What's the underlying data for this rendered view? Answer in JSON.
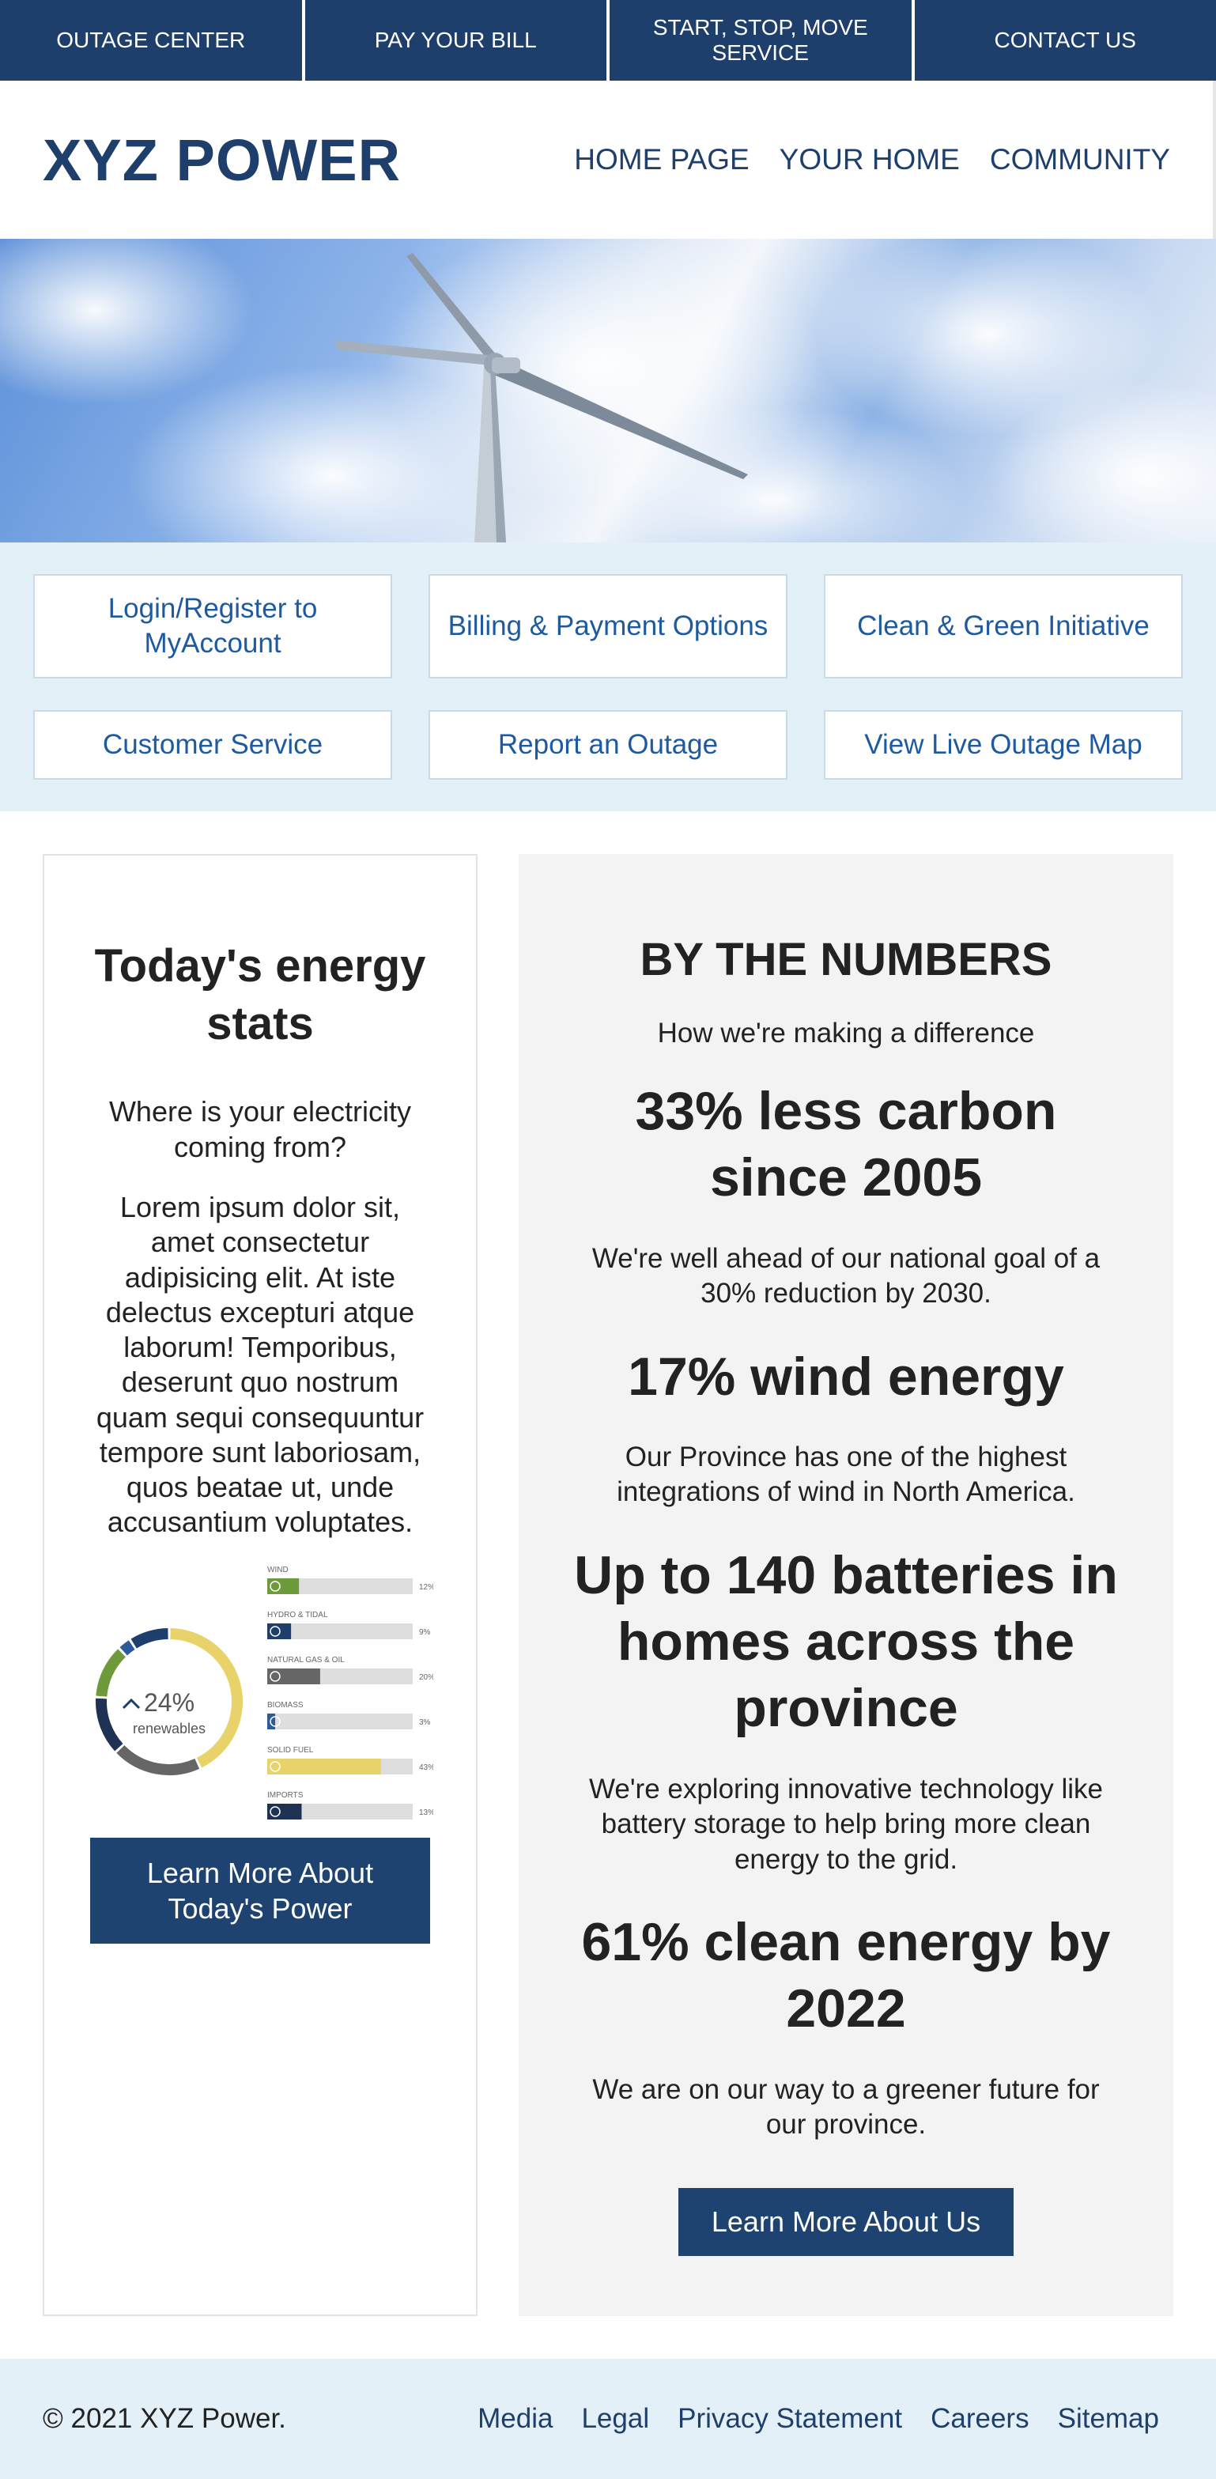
{
  "top_links": [
    "OUTAGE CENTER",
    "PAY YOUR BILL",
    "START, STOP, MOVE SERVICE",
    "CONTACT US"
  ],
  "logo": "XYZ POWER",
  "main_nav": [
    "HOME PAGE",
    "YOUR HOME",
    "COMMUNITY"
  ],
  "quick_links": [
    "Login/Register to MyAccount",
    "Billing & Payment Options",
    "Clean & Green Initiative",
    "Customer Service",
    "Report an Outage",
    "View Live Outage Map"
  ],
  "stats": {
    "title": "Today's energy stats",
    "subtitle": "Where is your electricity coming from?",
    "body": "Lorem ipsum dolor sit, amet consectetur adipisicing elit. At iste delectus excepturi atque laborum! Temporibus, deserunt quo nostrum quam sequi consequuntur tempore sunt laboriosam, quos beatae ut, unde accusantium voluptates.",
    "button": "Learn More About Today's Power",
    "donut_value": "24%",
    "donut_label": "renewables",
    "sources": [
      {
        "label": "WIND",
        "pct": "12%",
        "value": 12,
        "color": "#6e9a3c",
        "icon": "wind-turbine-icon"
      },
      {
        "label": "HYDRO & TIDAL",
        "pct": "9%",
        "value": 9,
        "color": "#1e3f6b",
        "icon": "water-icon"
      },
      {
        "label": "NATURAL GAS & OIL",
        "pct": "20%",
        "value": 20,
        "color": "#666666",
        "icon": "flame-icon"
      },
      {
        "label": "BIOMASS",
        "pct": "3%",
        "value": 3,
        "color": "#2c5a9a",
        "icon": "leaf-icon"
      },
      {
        "label": "SOLID FUEL",
        "pct": "43%",
        "value": 43,
        "color": "#e8d36b",
        "icon": "coal-icon"
      },
      {
        "label": "IMPORTS",
        "pct": "13%",
        "value": 13,
        "color": "#1e3354",
        "icon": "globe-icon"
      }
    ]
  },
  "numbers": {
    "title": "BY THE NUMBERS",
    "subtitle": "How we're making a difference",
    "items": [
      {
        "stat": "33% less carbon since 2005",
        "desc": "We're well ahead of our national goal of a 30% reduction by 2030."
      },
      {
        "stat": "17% wind energy",
        "desc": "Our Province has one of the highest integrations of wind in North America."
      },
      {
        "stat": "Up to 140 batteries in homes across the province",
        "desc": "We're exploring innovative technology like battery storage to help bring more clean energy to the grid."
      },
      {
        "stat": "61% clean energy by 2022",
        "desc": "We are on our way to a greener future for our province."
      }
    ],
    "button": "Learn More About Us"
  },
  "footer": {
    "copyright": "© 2021 XYZ Power.",
    "links": [
      "Media",
      "Legal",
      "Privacy Statement",
      "Careers",
      "Sitemap"
    ]
  }
}
